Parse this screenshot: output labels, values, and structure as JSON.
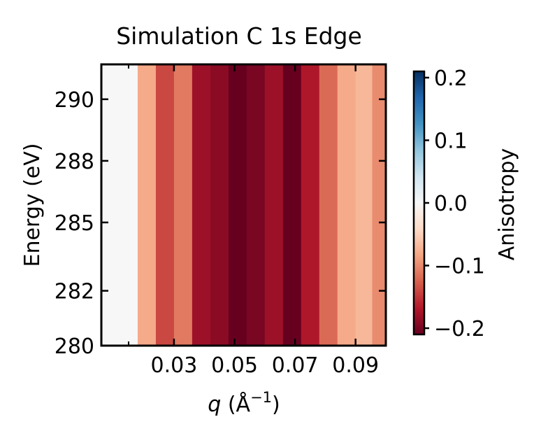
{
  "chart_data": {
    "type": "heatmap",
    "title": "Simulation C 1s Edge",
    "xlabel_var": "q",
    "xlabel_unit": " (Å",
    "xlabel_exp": "−1",
    "xlabel_close": ")",
    "ylabel": "Energy (eV)",
    "colorbar_label": "Anisotropy",
    "x_range": [
      0.006,
      0.1
    ],
    "y_range": [
      280,
      291.5
    ],
    "x_ticks": [
      0.03,
      0.05,
      0.07,
      0.09
    ],
    "x_tick_labels": [
      "0.03",
      "0.05",
      "0.07",
      "0.09"
    ],
    "x_minor_ticks": [
      0.015
    ],
    "y_ticks": [
      280,
      282,
      285,
      288,
      290
    ],
    "y_tick_labels": [
      "280",
      "282",
      "285",
      "288",
      "290"
    ],
    "y_tick_fraction": [
      0,
      0.195,
      0.438,
      0.657,
      0.876
    ],
    "colorbar_range": [
      -0.21,
      0.21
    ],
    "colorbar_ticks": [
      -0.2,
      -0.1,
      0.0,
      0.1,
      0.2
    ],
    "colorbar_tick_labels": [
      "−0.2",
      "−0.1",
      "0.0",
      "0.1",
      "0.2"
    ],
    "colormap": "RdBu",
    "q_columns": [
      0.009,
      0.015,
      0.021,
      0.027,
      0.033,
      0.039,
      0.045,
      0.051,
      0.057,
      0.063,
      0.069,
      0.075,
      0.081,
      0.087,
      0.093,
      0.098
    ],
    "anisotropy": [
      0.0,
      0.0,
      -0.08,
      -0.14,
      -0.11,
      -0.18,
      -0.19,
      -0.21,
      -0.2,
      -0.18,
      -0.21,
      -0.17,
      -0.12,
      -0.08,
      -0.07,
      -0.1
    ]
  }
}
